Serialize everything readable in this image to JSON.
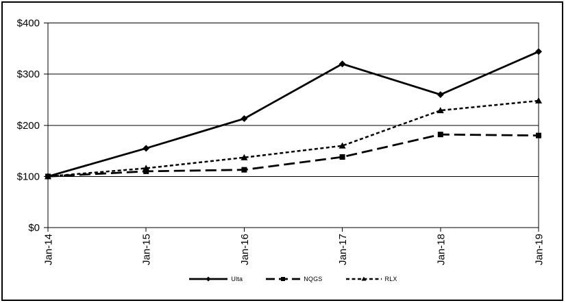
{
  "chart_data": {
    "type": "line",
    "title": "",
    "x_categories": [
      "Jan-14",
      "Jan-15",
      "Jan-16",
      "Jan-17",
      "Jan-18",
      "Jan-19"
    ],
    "y_axis": {
      "tick_labels": [
        "$0",
        "$100",
        "$200",
        "$300",
        "$400"
      ],
      "tick_values": [
        0,
        100,
        200,
        300,
        400
      ]
    },
    "ylim": [
      0,
      400
    ],
    "grid": true,
    "legend_position": "bottom-center",
    "colors": {
      "line": "#000000",
      "background": "#ffffff",
      "border": "#000000"
    },
    "series": [
      {
        "name": "Ulta",
        "line_style": "solid",
        "marker": "diamond",
        "values": [
          100,
          155,
          213,
          320,
          260,
          344
        ]
      },
      {
        "name": "NQGS",
        "line_style": "long-dash",
        "marker": "square",
        "values": [
          100,
          110,
          113,
          138,
          182,
          180
        ]
      },
      {
        "name": "RLX",
        "line_style": "short-dash",
        "marker": "triangle",
        "values": [
          100,
          116,
          137,
          160,
          229,
          248
        ]
      }
    ]
  }
}
